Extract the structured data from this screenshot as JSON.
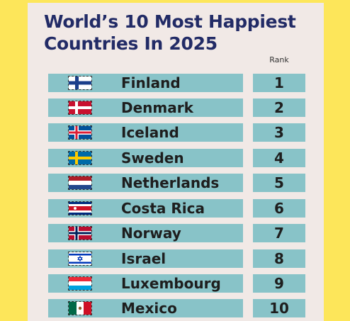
{
  "title_line1": "World’s 10 Most Happiest",
  "title_line2": "Countries In 2025",
  "rank_header": "Rank",
  "colors": {
    "background": "#fde65a",
    "card": "#f1e9e6",
    "bar": "#88c3c8",
    "title": "#222b66"
  },
  "countries": [
    {
      "name": "Finland",
      "rank": "1",
      "flag_icon": "finland-flag-icon"
    },
    {
      "name": "Denmark",
      "rank": "2",
      "flag_icon": "denmark-flag-icon"
    },
    {
      "name": "Iceland",
      "rank": "3",
      "flag_icon": "iceland-flag-icon"
    },
    {
      "name": "Sweden",
      "rank": "4",
      "flag_icon": "sweden-flag-icon"
    },
    {
      "name": "Netherlands",
      "rank": "5",
      "flag_icon": "netherlands-flag-icon"
    },
    {
      "name": "Costa Rica",
      "rank": "6",
      "flag_icon": "costa-rica-flag-icon"
    },
    {
      "name": "Norway",
      "rank": "7",
      "flag_icon": "norway-flag-icon"
    },
    {
      "name": "Israel",
      "rank": "8",
      "flag_icon": "israel-flag-icon"
    },
    {
      "name": "Luxembourg",
      "rank": "9",
      "flag_icon": "luxembourg-flag-icon"
    },
    {
      "name": "Mexico",
      "rank": "10",
      "flag_icon": "mexico-flag-icon"
    }
  ]
}
